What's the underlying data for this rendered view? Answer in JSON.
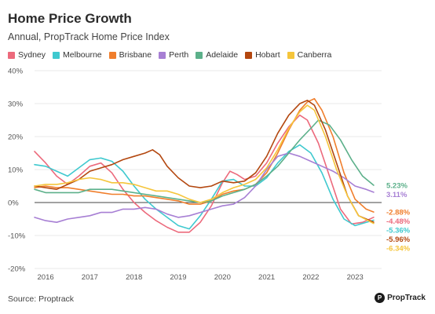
{
  "header": {
    "title": "Home Price Growth",
    "subtitle": "Annual, PropTrack Home Price Index"
  },
  "footer": {
    "source": "Source: Proptrack",
    "brand": "PropTrack"
  },
  "chart_data": {
    "type": "line",
    "title": "Home Price Growth",
    "subtitle": "Annual, PropTrack Home Price Index",
    "xlabel": "",
    "ylabel": "",
    "xlim": [
      2015.75,
      2023.6
    ],
    "ylim": [
      -20,
      40
    ],
    "yticks": [
      40,
      30,
      20,
      10,
      0,
      -10,
      -20
    ],
    "ytick_labels": [
      "40%",
      "30%",
      "20%",
      "10%",
      "0%",
      "-10%",
      "-20%"
    ],
    "xticks": [
      2016,
      2017,
      2018,
      2019,
      2020,
      2021,
      2022,
      2023
    ],
    "xtick_labels": [
      "2016",
      "2017",
      "2018",
      "2019",
      "2020",
      "2021",
      "2022",
      "2023"
    ],
    "grid": true,
    "legend_position": "top",
    "series": [
      {
        "name": "Sydney",
        "color": "#ec6a7c",
        "end_label": "-4.48%",
        "points": [
          [
            2015.75,
            15.5
          ],
          [
            2016.0,
            12
          ],
          [
            2016.25,
            8
          ],
          [
            2016.5,
            5.5
          ],
          [
            2016.75,
            8
          ],
          [
            2017.0,
            11
          ],
          [
            2017.25,
            12
          ],
          [
            2017.5,
            9
          ],
          [
            2017.75,
            4
          ],
          [
            2018.0,
            0
          ],
          [
            2018.25,
            -3
          ],
          [
            2018.5,
            -5.5
          ],
          [
            2018.75,
            -7.5
          ],
          [
            2019.0,
            -9
          ],
          [
            2019.25,
            -9
          ],
          [
            2019.5,
            -6
          ],
          [
            2019.75,
            -1
          ],
          [
            2020.0,
            6
          ],
          [
            2020.17,
            9.5
          ],
          [
            2020.33,
            8.5
          ],
          [
            2020.5,
            7
          ],
          [
            2020.75,
            8
          ],
          [
            2021.0,
            12
          ],
          [
            2021.25,
            18
          ],
          [
            2021.5,
            23
          ],
          [
            2021.75,
            26.5
          ],
          [
            2021.92,
            25
          ],
          [
            2022.17,
            18
          ],
          [
            2022.42,
            8
          ],
          [
            2022.67,
            -2
          ],
          [
            2022.92,
            -6.5
          ],
          [
            2023.17,
            -6
          ],
          [
            2023.42,
            -4.48
          ]
        ]
      },
      {
        "name": "Melbourne",
        "color": "#3fc9cf",
        "end_label": "-5.36%",
        "points": [
          [
            2015.75,
            11.5
          ],
          [
            2016.0,
            11
          ],
          [
            2016.25,
            9.5
          ],
          [
            2016.5,
            8
          ],
          [
            2016.75,
            10.5
          ],
          [
            2017.0,
            13
          ],
          [
            2017.25,
            13.5
          ],
          [
            2017.5,
            12.5
          ],
          [
            2017.75,
            9.5
          ],
          [
            2018.0,
            5
          ],
          [
            2018.25,
            1
          ],
          [
            2018.5,
            -2
          ],
          [
            2018.75,
            -4.5
          ],
          [
            2019.0,
            -7
          ],
          [
            2019.25,
            -8
          ],
          [
            2019.5,
            -4
          ],
          [
            2019.75,
            1
          ],
          [
            2020.0,
            6.5
          ],
          [
            2020.25,
            7
          ],
          [
            2020.5,
            5
          ],
          [
            2020.75,
            5
          ],
          [
            2021.0,
            7.5
          ],
          [
            2021.25,
            12
          ],
          [
            2021.5,
            15.5
          ],
          [
            2021.75,
            17.5
          ],
          [
            2022.0,
            15
          ],
          [
            2022.25,
            9
          ],
          [
            2022.5,
            1
          ],
          [
            2022.75,
            -5
          ],
          [
            2023.0,
            -7
          ],
          [
            2023.42,
            -5.36
          ]
        ]
      },
      {
        "name": "Brisbane",
        "color": "#f07e2c",
        "end_label": "-2.88%",
        "points": [
          [
            2015.75,
            4.5
          ],
          [
            2016.0,
            5
          ],
          [
            2016.25,
            4.5
          ],
          [
            2016.5,
            4.5
          ],
          [
            2016.75,
            4
          ],
          [
            2017.0,
            3.5
          ],
          [
            2017.25,
            3
          ],
          [
            2017.5,
            2.5
          ],
          [
            2017.75,
            2.5
          ],
          [
            2018.0,
            2
          ],
          [
            2018.25,
            2
          ],
          [
            2018.5,
            1.5
          ],
          [
            2018.75,
            1
          ],
          [
            2019.0,
            0.5
          ],
          [
            2019.25,
            -0.5
          ],
          [
            2019.5,
            -0.5
          ],
          [
            2019.75,
            0.5
          ],
          [
            2020.0,
            2.5
          ],
          [
            2020.25,
            3.5
          ],
          [
            2020.5,
            4
          ],
          [
            2020.75,
            5.5
          ],
          [
            2021.0,
            9
          ],
          [
            2021.25,
            15
          ],
          [
            2021.5,
            22
          ],
          [
            2021.75,
            28
          ],
          [
            2021.92,
            30.5
          ],
          [
            2022.08,
            31.5
          ],
          [
            2022.25,
            28
          ],
          [
            2022.5,
            20
          ],
          [
            2022.75,
            9
          ],
          [
            2023.0,
            1
          ],
          [
            2023.25,
            -2
          ],
          [
            2023.42,
            -2.88
          ]
        ]
      },
      {
        "name": "Perth",
        "color": "#a77fd4",
        "end_label": "3.11%",
        "points": [
          [
            2015.75,
            -4.5
          ],
          [
            2016.0,
            -5.5
          ],
          [
            2016.25,
            -6
          ],
          [
            2016.5,
            -5
          ],
          [
            2016.75,
            -4.5
          ],
          [
            2017.0,
            -4
          ],
          [
            2017.25,
            -3
          ],
          [
            2017.5,
            -3
          ],
          [
            2017.75,
            -2
          ],
          [
            2018.0,
            -2
          ],
          [
            2018.25,
            -1.5
          ],
          [
            2018.5,
            -2
          ],
          [
            2018.75,
            -3.5
          ],
          [
            2019.0,
            -4.5
          ],
          [
            2019.25,
            -4
          ],
          [
            2019.5,
            -3
          ],
          [
            2019.75,
            -2
          ],
          [
            2020.0,
            -1
          ],
          [
            2020.25,
            -0.5
          ],
          [
            2020.5,
            1.5
          ],
          [
            2020.75,
            5
          ],
          [
            2021.0,
            10
          ],
          [
            2021.25,
            14
          ],
          [
            2021.5,
            15
          ],
          [
            2021.75,
            14
          ],
          [
            2022.0,
            12.5
          ],
          [
            2022.25,
            11
          ],
          [
            2022.5,
            9.5
          ],
          [
            2022.75,
            7.5
          ],
          [
            2023.0,
            5
          ],
          [
            2023.25,
            4
          ],
          [
            2023.42,
            3.11
          ]
        ]
      },
      {
        "name": "Adelaide",
        "color": "#5cb08a",
        "end_label": "5.23%",
        "points": [
          [
            2015.75,
            4
          ],
          [
            2016.0,
            3
          ],
          [
            2016.25,
            3
          ],
          [
            2016.5,
            3
          ],
          [
            2016.75,
            3
          ],
          [
            2017.0,
            4
          ],
          [
            2017.25,
            4
          ],
          [
            2017.5,
            4
          ],
          [
            2017.75,
            3.5
          ],
          [
            2018.0,
            3
          ],
          [
            2018.25,
            2.5
          ],
          [
            2018.5,
            2
          ],
          [
            2018.75,
            1.5
          ],
          [
            2019.0,
            1
          ],
          [
            2019.25,
            0.5
          ],
          [
            2019.5,
            0
          ],
          [
            2019.75,
            0.5
          ],
          [
            2020.0,
            2
          ],
          [
            2020.25,
            3
          ],
          [
            2020.5,
            4
          ],
          [
            2020.75,
            5.5
          ],
          [
            2021.0,
            8
          ],
          [
            2021.25,
            11
          ],
          [
            2021.5,
            15
          ],
          [
            2021.75,
            19
          ],
          [
            2022.0,
            22.5
          ],
          [
            2022.17,
            25
          ],
          [
            2022.42,
            23.5
          ],
          [
            2022.67,
            19
          ],
          [
            2022.92,
            13
          ],
          [
            2023.17,
            8
          ],
          [
            2023.42,
            5.23
          ]
        ]
      },
      {
        "name": "Hobart",
        "color": "#b3470f",
        "end_label": "-5.96%",
        "points": [
          [
            2015.75,
            5
          ],
          [
            2016.0,
            4.5
          ],
          [
            2016.25,
            4
          ],
          [
            2016.5,
            5.5
          ],
          [
            2016.75,
            7
          ],
          [
            2017.0,
            9.5
          ],
          [
            2017.25,
            10.5
          ],
          [
            2017.5,
            11.5
          ],
          [
            2017.75,
            13
          ],
          [
            2018.0,
            14
          ],
          [
            2018.25,
            15
          ],
          [
            2018.42,
            16
          ],
          [
            2018.58,
            14.5
          ],
          [
            2018.75,
            11
          ],
          [
            2019.0,
            7.5
          ],
          [
            2019.25,
            5
          ],
          [
            2019.5,
            4.5
          ],
          [
            2019.75,
            5
          ],
          [
            2020.0,
            6.5
          ],
          [
            2020.25,
            6
          ],
          [
            2020.5,
            6.5
          ],
          [
            2020.75,
            9
          ],
          [
            2021.0,
            14
          ],
          [
            2021.25,
            21
          ],
          [
            2021.5,
            26.5
          ],
          [
            2021.75,
            30
          ],
          [
            2021.92,
            31
          ],
          [
            2022.08,
            29.5
          ],
          [
            2022.33,
            22
          ],
          [
            2022.58,
            12
          ],
          [
            2022.83,
            2
          ],
          [
            2023.08,
            -4
          ],
          [
            2023.42,
            -5.96
          ]
        ]
      },
      {
        "name": "Canberra",
        "color": "#f5c53b",
        "end_label": "-6.34%",
        "points": [
          [
            2015.75,
            5
          ],
          [
            2016.0,
            5.5
          ],
          [
            2016.25,
            5.5
          ],
          [
            2016.5,
            6
          ],
          [
            2016.75,
            7
          ],
          [
            2017.0,
            7.5
          ],
          [
            2017.25,
            7
          ],
          [
            2017.5,
            6
          ],
          [
            2017.75,
            6
          ],
          [
            2018.0,
            5.5
          ],
          [
            2018.25,
            4.5
          ],
          [
            2018.5,
            3.5
          ],
          [
            2018.75,
            3.5
          ],
          [
            2019.0,
            2.5
          ],
          [
            2019.25,
            1
          ],
          [
            2019.5,
            0
          ],
          [
            2019.75,
            1
          ],
          [
            2020.0,
            3
          ],
          [
            2020.25,
            4.5
          ],
          [
            2020.5,
            5.5
          ],
          [
            2020.75,
            7
          ],
          [
            2021.0,
            10.5
          ],
          [
            2021.25,
            16
          ],
          [
            2021.5,
            22.5
          ],
          [
            2021.75,
            27.5
          ],
          [
            2021.92,
            29.5
          ],
          [
            2022.08,
            28
          ],
          [
            2022.33,
            20
          ],
          [
            2022.58,
            10
          ],
          [
            2022.83,
            2
          ],
          [
            2023.08,
            -4
          ],
          [
            2023.42,
            -6.34
          ]
        ]
      }
    ]
  }
}
